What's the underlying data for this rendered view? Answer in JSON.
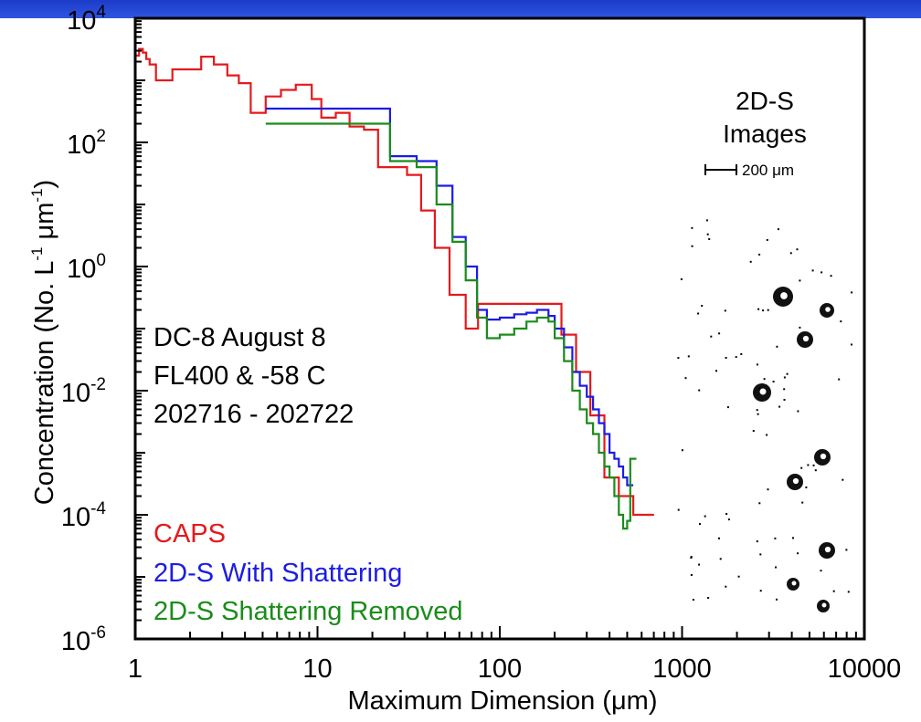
{
  "chart_data": {
    "type": "line",
    "x_scale": "log",
    "y_scale": "log",
    "xlim": [
      1,
      10000
    ],
    "ylim": [
      1e-06,
      10000
    ],
    "x_ticks": [
      {
        "value": 1,
        "label": "1"
      },
      {
        "value": 10,
        "label": "10"
      },
      {
        "value": 100,
        "label": "100"
      },
      {
        "value": 1000,
        "label": "1000"
      },
      {
        "value": 10000,
        "label": "10000"
      }
    ],
    "y_ticks": [
      {
        "value": 10000,
        "base": "10",
        "exp": "4"
      },
      {
        "value": 100,
        "base": "10",
        "exp": "2"
      },
      {
        "value": 1,
        "base": "10",
        "exp": "0"
      },
      {
        "value": 0.01,
        "base": "10",
        "exp": "-2"
      },
      {
        "value": 0.0001,
        "base": "10",
        "exp": "-4"
      },
      {
        "value": 1e-06,
        "base": "10",
        "exp": "-6"
      }
    ],
    "xlabel": "Maximum Dimension (μm)",
    "ylabel": {
      "prefix": "Concentration (No. L",
      "sup1": "-1",
      "mid": " μm",
      "sup2": "-1",
      "suffix": ")"
    },
    "annotation": [
      "DC-8 August 8",
      "FL400 &  -58 C",
      "202716 - 202722"
    ],
    "series": [
      {
        "name": "CAPS",
        "color": "#e41a1c",
        "x": [
          1.0,
          1.05,
          1.1,
          1.15,
          1.2,
          1.3,
          1.6,
          2.3,
          2.7,
          3.2,
          3.7,
          4.3,
          5.2,
          6.3,
          7.6,
          9.3,
          10.5,
          12.6,
          15,
          18,
          21.5,
          26,
          31,
          37,
          44,
          53,
          65,
          76,
          90,
          108,
          128,
          152,
          182,
          218,
          262,
          314,
          375,
          450,
          540,
          650
        ],
        "y": [
          2500,
          3200,
          2800,
          2200,
          1800,
          1000,
          1500,
          2400,
          1800,
          1200,
          900,
          300,
          550,
          700,
          850,
          500,
          250,
          300,
          180,
          160,
          40,
          40,
          30,
          8,
          2,
          0.35,
          0.1,
          0.25,
          0.25,
          0.25,
          0.25,
          0.25,
          0.25,
          0.08,
          0.02,
          0.004,
          0.0004,
          0.0002,
          0.0001,
          0.0001
        ]
      },
      {
        "name": "2D-S With Shattering",
        "color": "#1c1ce6",
        "x": [
          5.2,
          15,
          25,
          35,
          45,
          55,
          65,
          75,
          85,
          100,
          120,
          140,
          160,
          185,
          200,
          225,
          250,
          275,
          300,
          325,
          350,
          375,
          400,
          425,
          450,
          475,
          500
        ],
        "y": [
          350,
          350,
          60,
          50,
          20,
          3,
          1,
          0.2,
          0.14,
          0.15,
          0.17,
          0.18,
          0.2,
          0.16,
          0.1,
          0.05,
          0.02,
          0.012,
          0.008,
          0.005,
          0.003,
          0.002,
          0.001,
          0.0008,
          0.0006,
          0.0004,
          0.0003
        ]
      },
      {
        "name": "2D-S Shattering Removed",
        "color": "#1a8c1a",
        "x": [
          5.2,
          15,
          25,
          35,
          45,
          55,
          65,
          75,
          85,
          100,
          120,
          140,
          160,
          185,
          200,
          225,
          250,
          275,
          300,
          325,
          350,
          375,
          400,
          425,
          450,
          475,
          500,
          520
        ],
        "y": [
          200,
          200,
          50,
          40,
          10,
          2.5,
          0.6,
          0.15,
          0.07,
          0.08,
          0.1,
          0.13,
          0.15,
          0.13,
          0.07,
          0.03,
          0.01,
          0.005,
          0.003,
          0.002,
          0.001,
          0.0006,
          0.0004,
          0.0002,
          0.0001,
          6e-05,
          8e-05,
          0.0008
        ]
      }
    ]
  },
  "images_panel": {
    "title_line1": "2D-S",
    "title_line2": "Images",
    "scale_label": "200 μm"
  }
}
